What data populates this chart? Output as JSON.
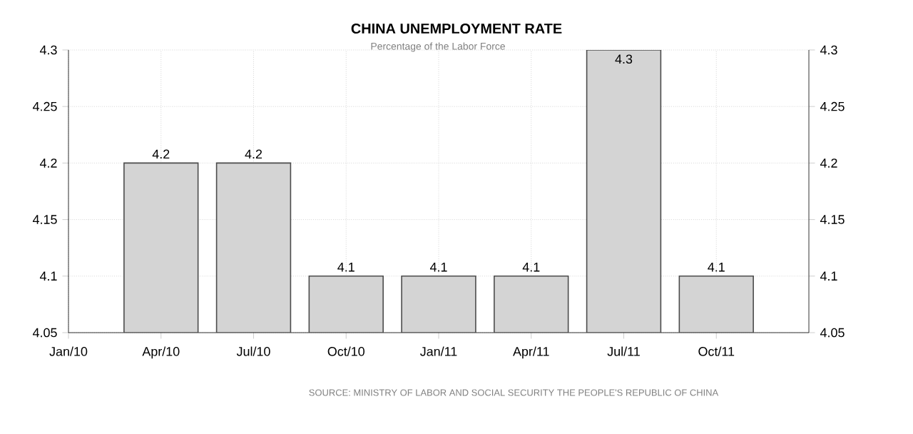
{
  "chart_data": {
    "type": "bar",
    "title": "CHINA UNEMPLOYMENT RATE",
    "subtitle": "Percentage of the Labor Force",
    "categories": [
      "Jan/10",
      "Apr/10",
      "Jul/10",
      "Oct/10",
      "Jan/11",
      "Apr/11",
      "Jul/11",
      "Oct/11"
    ],
    "values": [
      null,
      4.2,
      4.2,
      4.1,
      4.1,
      4.1,
      4.3,
      4.1
    ],
    "color": "#d4d4d4",
    "ylim": [
      4.05,
      4.3
    ],
    "yticks": [
      4.05,
      4.1,
      4.15,
      4.2,
      4.25,
      4.3
    ],
    "y2lim": [
      4.05,
      4.3
    ],
    "y2ticks": [
      4.05,
      4.1,
      4.15,
      4.2,
      4.25,
      4.3
    ],
    "grid": true,
    "data_labels": true,
    "annotations": [
      "SOURCE: MINISTRY OF LABOR AND SOCIAL SECURITY THE PEOPLE'S REPUBLIC OF CHINA"
    ]
  }
}
